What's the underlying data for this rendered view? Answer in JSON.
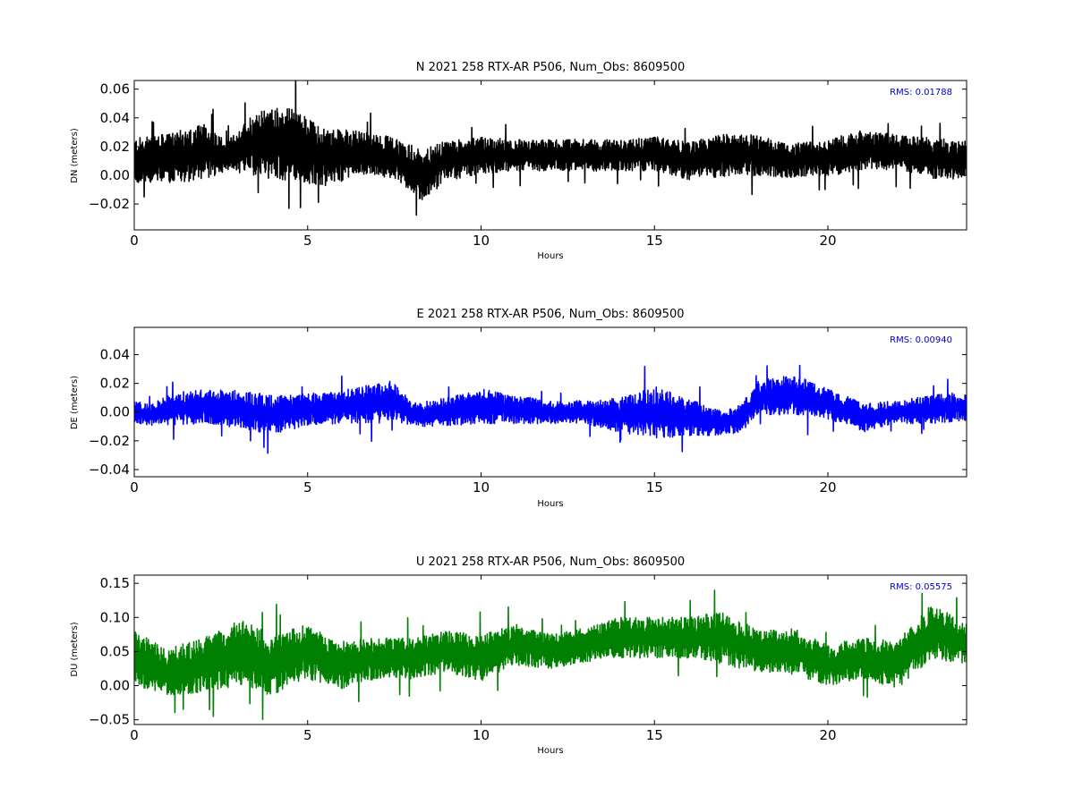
{
  "chart_data": [
    {
      "type": "line",
      "title": "N 2021 258 RTX-AR  P506, Num_Obs: 8609500",
      "xlabel": "Hours",
      "ylabel": "DN (meters)",
      "xlim": [
        0,
        24
      ],
      "ylim": [
        -0.038,
        0.066
      ],
      "xticks": [
        0,
        5,
        10,
        15,
        20
      ],
      "yticks": [
        -0.02,
        0.0,
        0.02,
        0.04,
        0.06
      ],
      "ytick_labels": [
        "−0.02",
        "0.00",
        "0.02",
        "0.04",
        "0.06"
      ],
      "annotation": "RMS:  0.01788",
      "color": "#000000",
      "annotation_color": "#0000cc",
      "grid": false,
      "series": [
        {
          "x": [
            0,
            1,
            2,
            2.7,
            3.5,
            4.5,
            5.5,
            6.5,
            7.5,
            8.3,
            9,
            10,
            11,
            12,
            13,
            14,
            15,
            16,
            17,
            18,
            19,
            20,
            21,
            22,
            23,
            24
          ],
          "center": [
            0.01,
            0.012,
            0.016,
            0.014,
            0.022,
            0.022,
            0.012,
            0.016,
            0.012,
            0.0,
            0.01,
            0.014,
            0.014,
            0.014,
            0.014,
            0.014,
            0.015,
            0.01,
            0.014,
            0.014,
            0.01,
            0.012,
            0.018,
            0.016,
            0.012,
            0.01
          ],
          "spread": [
            0.016,
            0.017,
            0.02,
            0.01,
            0.024,
            0.026,
            0.02,
            0.016,
            0.014,
            0.018,
            0.014,
            0.013,
            0.011,
            0.011,
            0.011,
            0.011,
            0.012,
            0.013,
            0.015,
            0.014,
            0.012,
            0.013,
            0.014,
            0.012,
            0.014,
            0.014
          ]
        }
      ]
    },
    {
      "type": "line",
      "title": "E 2021 258 RTX-AR  P506, Num_Obs: 8609500",
      "xlabel": "Hours",
      "ylabel": "DE (meters)",
      "xlim": [
        0,
        24
      ],
      "ylim": [
        -0.045,
        0.059
      ],
      "xticks": [
        0,
        5,
        10,
        15,
        20
      ],
      "yticks": [
        -0.04,
        -0.02,
        0.0,
        0.02,
        0.04
      ],
      "ytick_labels": [
        "−0.04",
        "−0.02",
        "0.00",
        "0.02",
        "0.04"
      ],
      "annotation": "RMS:  0.00940",
      "color": "#0000ff",
      "annotation_color": "#0000cc",
      "grid": false,
      "series": [
        {
          "x": [
            0,
            0.5,
            1,
            2,
            3,
            4,
            5,
            6,
            7,
            7.5,
            8,
            9,
            10,
            11,
            12,
            13,
            14,
            15,
            16,
            17,
            17.5,
            18,
            19,
            20,
            21,
            22,
            23,
            24
          ],
          "center": [
            0.0,
            -0.002,
            0.002,
            0.004,
            0.002,
            -0.002,
            0.002,
            0.004,
            0.006,
            0.008,
            -0.002,
            0.0,
            0.004,
            0.002,
            0.0,
            0.0,
            -0.002,
            0.0,
            -0.004,
            -0.008,
            -0.004,
            0.01,
            0.012,
            0.006,
            -0.004,
            0.0,
            0.002,
            0.004
          ],
          "spread": [
            0.008,
            0.007,
            0.011,
            0.012,
            0.013,
            0.014,
            0.011,
            0.012,
            0.014,
            0.014,
            0.008,
            0.01,
            0.012,
            0.01,
            0.008,
            0.008,
            0.012,
            0.018,
            0.013,
            0.008,
            0.01,
            0.012,
            0.014,
            0.011,
            0.01,
            0.008,
            0.01,
            0.01
          ]
        }
      ]
    },
    {
      "type": "line",
      "title": "U 2021 258 RTX-AR  P506, Num_Obs: 8609500",
      "xlabel": "Hours",
      "ylabel": "DU (meters)",
      "xlim": [
        0,
        24
      ],
      "ylim": [
        -0.057,
        0.162
      ],
      "xticks": [
        0,
        5,
        10,
        15,
        20
      ],
      "yticks": [
        -0.05,
        0.0,
        0.05,
        0.1,
        0.15
      ],
      "ytick_labels": [
        "−0.05",
        "0.00",
        "0.05",
        "0.10",
        "0.15"
      ],
      "annotation": "RMS:  0.05575",
      "color": "#008000",
      "annotation_color": "#0000cc",
      "grid": false,
      "series": [
        {
          "x": [
            0,
            1,
            2,
            3,
            4,
            5,
            6,
            7,
            8,
            9,
            10,
            11,
            12,
            13,
            14,
            15,
            16,
            17,
            18,
            19,
            20,
            21,
            22,
            23,
            24
          ],
          "center": [
            0.04,
            0.02,
            0.03,
            0.05,
            0.03,
            0.05,
            0.03,
            0.04,
            0.04,
            0.05,
            0.04,
            0.06,
            0.05,
            0.06,
            0.07,
            0.07,
            0.07,
            0.07,
            0.05,
            0.05,
            0.03,
            0.04,
            0.03,
            0.08,
            0.06
          ],
          "spread": [
            0.04,
            0.035,
            0.04,
            0.05,
            0.045,
            0.04,
            0.035,
            0.03,
            0.03,
            0.03,
            0.035,
            0.03,
            0.025,
            0.025,
            0.03,
            0.03,
            0.03,
            0.04,
            0.03,
            0.035,
            0.03,
            0.03,
            0.035,
            0.04,
            0.03
          ]
        }
      ]
    }
  ]
}
